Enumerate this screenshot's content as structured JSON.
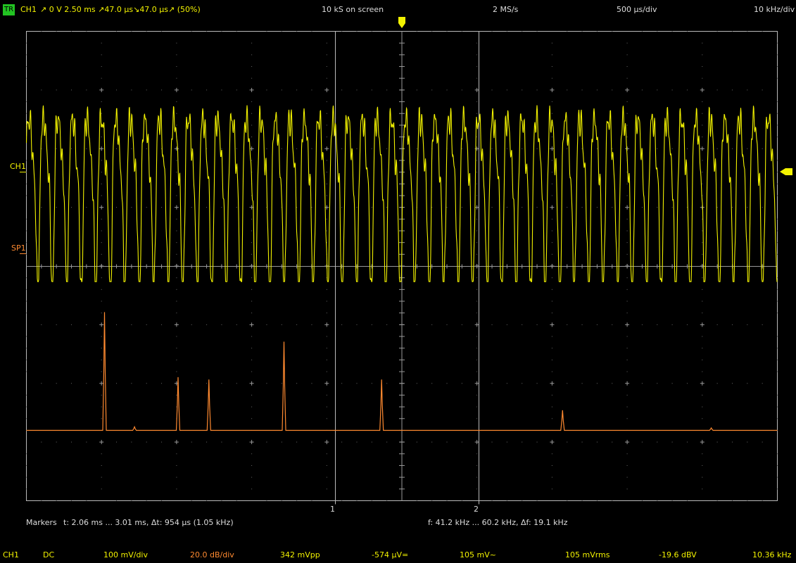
{
  "header": {
    "trigger_badge": "TR",
    "channel": "CH1",
    "trigger_text": "↗  0 V  2.50 ms  ↗47.0 µs↘47.0 µs↗ (50%)",
    "samples": "10 kS on screen",
    "sample_rate": "2 MS/s",
    "timebase": "500 µs/div",
    "freq_scale": "10 kHz/div"
  },
  "labels": {
    "ch1": "CH1",
    "sp1": "SP1",
    "marker1": "1",
    "marker2": "2"
  },
  "markers": {
    "label": "Markers",
    "time": "t: 2.06 ms ... 3.01 ms,  Δt: 954 µs (1.05 kHz)",
    "freq": "f: 41.2 kHz ... 60.2 kHz,  Δf: 19.1 kHz"
  },
  "status": {
    "channel": "CH1",
    "coupling": "DC",
    "volts_div": "100 mV/div",
    "db_div": "20.0 dB/div",
    "vpp": "342 mVpp",
    "dc": "-574 µV=",
    "ac": "105 mV~",
    "rms": "105 mVrms",
    "dbv": "-19.6 dBV",
    "freq": "10.36 kHz"
  },
  "colors": {
    "ch1": "#f2f200",
    "spectrum": "#ff8a30",
    "grid": "#9a9a9a",
    "trigger_badge": "#22c322"
  },
  "chart_data": [
    {
      "type": "line",
      "name": "CH1",
      "x_unit": "ms",
      "xlim": [
        0,
        5
      ],
      "x_div": 0.5,
      "y_unit": "mV",
      "y_div": 100,
      "signal_frequency_kHz": 10.36,
      "peak_to_peak_mV": 342,
      "mean_uV": -574,
      "ac_rms_mV": 105,
      "level_dBV": -19.6
    },
    {
      "type": "line",
      "name": "SP1",
      "x_unit": "kHz",
      "xlim": [
        0,
        100
      ],
      "x_div": 10,
      "y_unit": "dB",
      "y_div": 20,
      "peaks": [
        {
          "x": 10.4,
          "y": 100
        },
        {
          "x": 14.4,
          "y": 3
        },
        {
          "x": 20.2,
          "y": 45
        },
        {
          "x": 24.3,
          "y": 43
        },
        {
          "x": 34.3,
          "y": 75
        },
        {
          "x": 47.3,
          "y": 43
        },
        {
          "x": 71.4,
          "y": 17
        },
        {
          "x": 91.2,
          "y": 2
        }
      ]
    }
  ]
}
